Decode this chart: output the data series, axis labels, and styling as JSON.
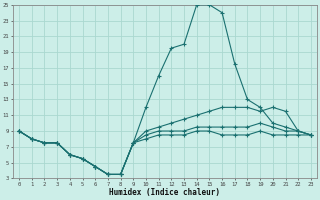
{
  "xlabel": "Humidex (Indice chaleur)",
  "ylabel": "",
  "xlim": [
    -0.5,
    23.5
  ],
  "ylim": [
    3,
    25
  ],
  "xticks": [
    0,
    1,
    2,
    3,
    4,
    5,
    6,
    7,
    8,
    9,
    10,
    11,
    12,
    13,
    14,
    15,
    16,
    17,
    18,
    19,
    20,
    21,
    22,
    23
  ],
  "yticks": [
    3,
    5,
    7,
    9,
    11,
    13,
    15,
    17,
    19,
    21,
    23,
    25
  ],
  "bg_color": "#cceee8",
  "grid_color": "#aad8d0",
  "line_color": "#1a7070",
  "curves": [
    {
      "x": [
        0,
        1,
        2,
        3,
        4,
        5,
        6,
        7,
        8,
        9,
        10,
        11,
        12,
        13,
        14,
        15,
        16,
        17,
        18,
        19,
        20,
        21,
        22,
        23
      ],
      "y": [
        9,
        8,
        7.5,
        7.5,
        6,
        5.5,
        4.5,
        3.5,
        3.5,
        7.5,
        12,
        16,
        19.5,
        20,
        25,
        25,
        24,
        17.5,
        13,
        12,
        10,
        9.5,
        9,
        8.5
      ]
    },
    {
      "x": [
        0,
        1,
        2,
        3,
        4,
        5,
        6,
        7,
        8,
        9,
        10,
        11,
        12,
        13,
        14,
        15,
        16,
        17,
        18,
        19,
        20,
        21,
        22,
        23
      ],
      "y": [
        9,
        8,
        7.5,
        7.5,
        6,
        5.5,
        4.5,
        3.5,
        3.5,
        7.5,
        9,
        9.5,
        10,
        10.5,
        11,
        11.5,
        12,
        12,
        12,
        11.5,
        12,
        11.5,
        9,
        8.5
      ]
    },
    {
      "x": [
        0,
        1,
        2,
        3,
        4,
        5,
        6,
        7,
        8,
        9,
        10,
        11,
        12,
        13,
        14,
        15,
        16,
        17,
        18,
        19,
        20,
        21,
        22,
        23
      ],
      "y": [
        9,
        8,
        7.5,
        7.5,
        6,
        5.5,
        4.5,
        3.5,
        3.5,
        7.5,
        8.5,
        9,
        9,
        9,
        9.5,
        9.5,
        9.5,
        9.5,
        9.5,
        10,
        9.5,
        9,
        9,
        8.5
      ]
    },
    {
      "x": [
        0,
        1,
        2,
        3,
        4,
        5,
        6,
        7,
        8,
        9,
        10,
        11,
        12,
        13,
        14,
        15,
        16,
        17,
        18,
        19,
        20,
        21,
        22,
        23
      ],
      "y": [
        9,
        8,
        7.5,
        7.5,
        6,
        5.5,
        4.5,
        3.5,
        3.5,
        7.5,
        8,
        8.5,
        8.5,
        8.5,
        9,
        9,
        8.5,
        8.5,
        8.5,
        9,
        8.5,
        8.5,
        8.5,
        8.5
      ]
    }
  ]
}
